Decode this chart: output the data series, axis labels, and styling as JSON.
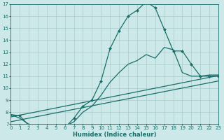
{
  "title": "",
  "xlabel": "Humidex (Indice chaleur)",
  "bg_color": "#cce8e8",
  "grid_color": "#aacccc",
  "line_color": "#1a6e6a",
  "xlim": [
    0,
    23
  ],
  "ylim": [
    7,
    17
  ],
  "yticks": [
    7,
    8,
    9,
    10,
    11,
    12,
    13,
    14,
    15,
    16,
    17
  ],
  "xticks": [
    0,
    1,
    2,
    3,
    4,
    5,
    6,
    7,
    8,
    9,
    10,
    11,
    12,
    13,
    14,
    15,
    16,
    17,
    18,
    19,
    20,
    21,
    22,
    23
  ],
  "series1_x": [
    0,
    1,
    2,
    3,
    4,
    5,
    6,
    7,
    8,
    9,
    10,
    11,
    12,
    13,
    14,
    15,
    16,
    17,
    18,
    19,
    20,
    21,
    22,
    23
  ],
  "series1_y": [
    7.8,
    7.7,
    6.9,
    6.6,
    6.6,
    6.6,
    6.7,
    7.5,
    8.5,
    9.0,
    10.6,
    13.3,
    14.8,
    16.0,
    16.5,
    17.2,
    16.7,
    14.9,
    13.1,
    13.1,
    12.0,
    11.0,
    11.0,
    11.0
  ],
  "series2_x": [
    0,
    23
  ],
  "series2_y": [
    7.6,
    11.05
  ],
  "series3_x": [
    0,
    23
  ],
  "series3_y": [
    7.2,
    10.6
  ],
  "series4_x": [
    0,
    1,
    2,
    3,
    4,
    5,
    6,
    7,
    8,
    9,
    10,
    11,
    12,
    13,
    14,
    15,
    16,
    17,
    18,
    19,
    20,
    21,
    22,
    23
  ],
  "series4_y": [
    7.8,
    7.5,
    7.0,
    6.9,
    6.8,
    6.8,
    6.8,
    7.2,
    8.0,
    8.5,
    9.4,
    10.5,
    11.3,
    12.0,
    12.3,
    12.8,
    12.5,
    13.4,
    13.2,
    11.3,
    11.0,
    11.0,
    11.1,
    11.1
  ],
  "tick_fontsize": 5.0,
  "xlabel_fontsize": 6.0,
  "linewidth": 0.9,
  "markersize": 2.0
}
